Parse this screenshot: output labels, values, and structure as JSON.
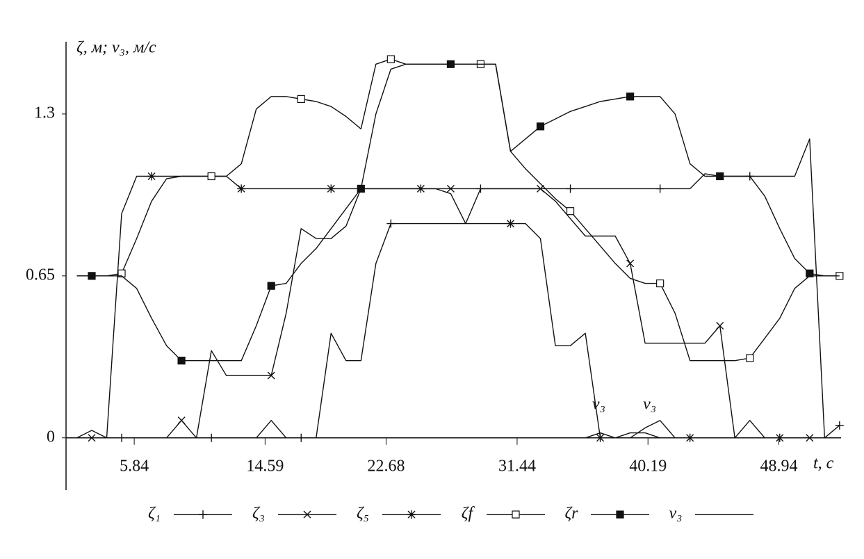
{
  "chart_data": {
    "type": "line",
    "y_label": "ζ, м; v₃, м/с",
    "x_label": "t, с",
    "xlim": [
      1.28,
      53.1
    ],
    "ylim": [
      -0.21,
      1.59
    ],
    "xticks": [
      5.84,
      14.59,
      22.68,
      31.44,
      40.19,
      48.94
    ],
    "yticks": [
      0,
      0.65,
      1.3
    ],
    "x": [
      2,
      3,
      4,
      5,
      6,
      7,
      8,
      9,
      10,
      11,
      12,
      13,
      14,
      15,
      16,
      17,
      18,
      19,
      20,
      21,
      22,
      23,
      24,
      25,
      26,
      27,
      28,
      29,
      30,
      31,
      32,
      33,
      34,
      35,
      36,
      37,
      38,
      39,
      40,
      41,
      42,
      43,
      44,
      45,
      46,
      47,
      48,
      49,
      50,
      51,
      52,
      53
    ],
    "series": [
      {
        "name": "ζ₁",
        "marker": "plus",
        "color": "#111",
        "values": [
          0,
          0.03,
          0,
          0,
          0,
          0,
          0,
          0,
          0,
          0,
          0,
          0,
          0,
          0.07,
          0,
          0,
          0,
          0.42,
          0.31,
          0.31,
          0.7,
          0.86,
          0.86,
          0.86,
          0.86,
          0.86,
          0.86,
          1.0,
          1.0,
          1.0,
          1.0,
          1.0,
          1.0,
          1.0,
          1.0,
          1.0,
          1.0,
          1.0,
          1.0,
          1.0,
          1.0,
          1.0,
          1.06,
          1.05,
          1.05,
          1.05,
          1.05,
          1.05,
          1.05,
          1.2,
          0,
          0.05
        ]
      },
      {
        "name": "ζ₃",
        "marker": "cross",
        "color": "#111",
        "values": [
          0,
          0,
          0,
          0,
          0,
          0,
          0,
          0.07,
          0,
          0.35,
          0.25,
          0.25,
          0.25,
          0.25,
          0.5,
          0.84,
          0.8,
          0.8,
          0.85,
          1.0,
          1.0,
          1.0,
          1.0,
          1.0,
          1.0,
          1.0,
          1.0,
          1.0,
          1.0,
          1.0,
          1.0,
          1.0,
          0.95,
          0.88,
          0.81,
          0.81,
          0.81,
          0.7,
          0.38,
          0.38,
          0.38,
          0.38,
          0.38,
          0.45,
          0,
          0.07,
          0,
          0,
          0,
          0,
          0,
          0
        ]
      },
      {
        "name": "ζ₅",
        "marker": "star",
        "color": "#111",
        "values": [
          0,
          0,
          0,
          0.9,
          1.05,
          1.05,
          1.05,
          1.05,
          1.05,
          1.05,
          1.05,
          1.0,
          1.0,
          1.0,
          1.0,
          1.0,
          1.0,
          1.0,
          1.0,
          1.0,
          1.0,
          1.0,
          1.0,
          1.0,
          1.0,
          0.98,
          0.86,
          0.86,
          0.86,
          0.86,
          0.86,
          0.8,
          0.37,
          0.37,
          0.42,
          0,
          0,
          0,
          0.04,
          0.07,
          0,
          0,
          0,
          0,
          0,
          0,
          0,
          0,
          0,
          0,
          0,
          0
        ]
      },
      {
        "name": "ζf",
        "marker": "square-open",
        "color": "#111",
        "values": [
          0.65,
          0.65,
          0.65,
          0.66,
          0.8,
          0.95,
          1.04,
          1.05,
          1.05,
          1.05,
          1.05,
          1.1,
          1.32,
          1.37,
          1.37,
          1.36,
          1.35,
          1.33,
          1.29,
          1.24,
          1.5,
          1.52,
          1.5,
          1.5,
          1.5,
          1.5,
          1.5,
          1.5,
          1.5,
          1.15,
          1.08,
          1.02,
          0.96,
          0.91,
          0.84,
          0.77,
          0.7,
          0.64,
          0.62,
          0.62,
          0.5,
          0.31,
          0.31,
          0.31,
          0.31,
          0.32,
          0.4,
          0.48,
          0.6,
          0.65,
          0.65,
          0.65
        ]
      },
      {
        "name": "ζr",
        "marker": "square-filled",
        "color": "#111",
        "values": [
          0.65,
          0.65,
          0.65,
          0.65,
          0.6,
          0.48,
          0.37,
          0.31,
          0.31,
          0.31,
          0.31,
          0.31,
          0.45,
          0.61,
          0.62,
          0.7,
          0.76,
          0.84,
          0.92,
          1.0,
          1.3,
          1.48,
          1.5,
          1.5,
          1.5,
          1.5,
          1.5,
          1.5,
          1.5,
          1.15,
          1.2,
          1.25,
          1.28,
          1.31,
          1.33,
          1.35,
          1.36,
          1.37,
          1.37,
          1.37,
          1.3,
          1.1,
          1.05,
          1.05,
          1.05,
          1.05,
          0.97,
          0.84,
          0.72,
          0.66,
          0.65,
          0.65
        ]
      },
      {
        "name": "v₃",
        "marker": "none",
        "color": "#111",
        "values": [
          0,
          0,
          0,
          0,
          0,
          0,
          0,
          0,
          0,
          0,
          0,
          0,
          0,
          0,
          0,
          0,
          0,
          0,
          0,
          0,
          0,
          0,
          0,
          0,
          0,
          0,
          0,
          0,
          0,
          0,
          0,
          0,
          0,
          0,
          0,
          0.02,
          0,
          0.02,
          0.02,
          0,
          0,
          0,
          0,
          0,
          0,
          0,
          0,
          0,
          0,
          0,
          0,
          0
        ]
      }
    ],
    "annotations": [
      {
        "text": "v₃",
        "x": 36.9,
        "y": 0.08
      },
      {
        "text": "v₃",
        "x": 40.3,
        "y": 0.08
      }
    ]
  }
}
